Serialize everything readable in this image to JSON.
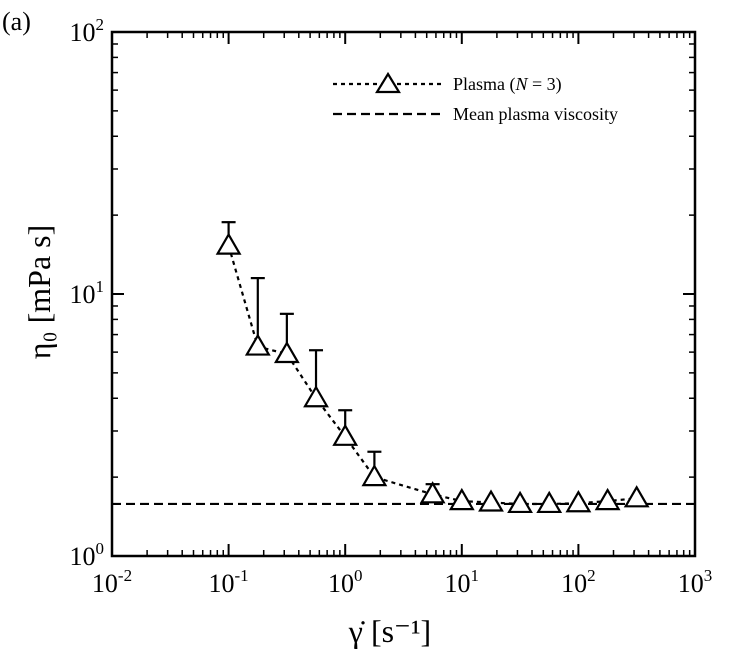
{
  "panel_label": "(a)",
  "chart_data": {
    "type": "scatter",
    "x_scale": "log",
    "y_scale": "log",
    "xlim": [
      0.01,
      1000
    ],
    "ylim": [
      1,
      100
    ],
    "xlabel": "γ̇ [s⁻¹]",
    "ylabel": "η₀ [mPa s]",
    "x_tick_labels": [
      {
        "value": 0.01,
        "base": "10",
        "exp": "-2"
      },
      {
        "value": 0.1,
        "base": "10",
        "exp": "-1"
      },
      {
        "value": 1,
        "base": "10",
        "exp": "0"
      },
      {
        "value": 10,
        "base": "10",
        "exp": "1"
      },
      {
        "value": 100,
        "base": "10",
        "exp": "2"
      },
      {
        "value": 1000,
        "base": "10",
        "exp": "3"
      }
    ],
    "y_tick_labels": [
      {
        "value": 1,
        "base": "10",
        "exp": "0"
      },
      {
        "value": 10,
        "base": "10",
        "exp": "1"
      },
      {
        "value": 100,
        "base": "10",
        "exp": "2"
      }
    ],
    "series": [
      {
        "name": "Plasma (N = 3)",
        "marker": "triangle-open",
        "line": "dotted",
        "x": [
          0.1,
          0.178,
          0.316,
          0.562,
          1.0,
          1.78,
          5.62,
          10,
          17.8,
          31.6,
          56.2,
          100,
          178,
          316
        ],
        "y": [
          15.3,
          6.3,
          5.9,
          4.0,
          2.85,
          2.0,
          1.72,
          1.62,
          1.6,
          1.58,
          1.58,
          1.59,
          1.62,
          1.66
        ],
        "error_upper": [
          18.8,
          11.5,
          8.4,
          6.1,
          3.6,
          2.5,
          1.88,
          null,
          null,
          null,
          null,
          null,
          null,
          null
        ]
      },
      {
        "name": "Mean plasma viscosity",
        "line": "dashed",
        "y_value": 1.58
      }
    ],
    "legend": {
      "position": "top-right",
      "entries": [
        {
          "prefix": "Plasma (",
          "italic": "N",
          "suffix": " = 3)"
        },
        {
          "text": "Mean plasma viscosity"
        }
      ]
    }
  }
}
